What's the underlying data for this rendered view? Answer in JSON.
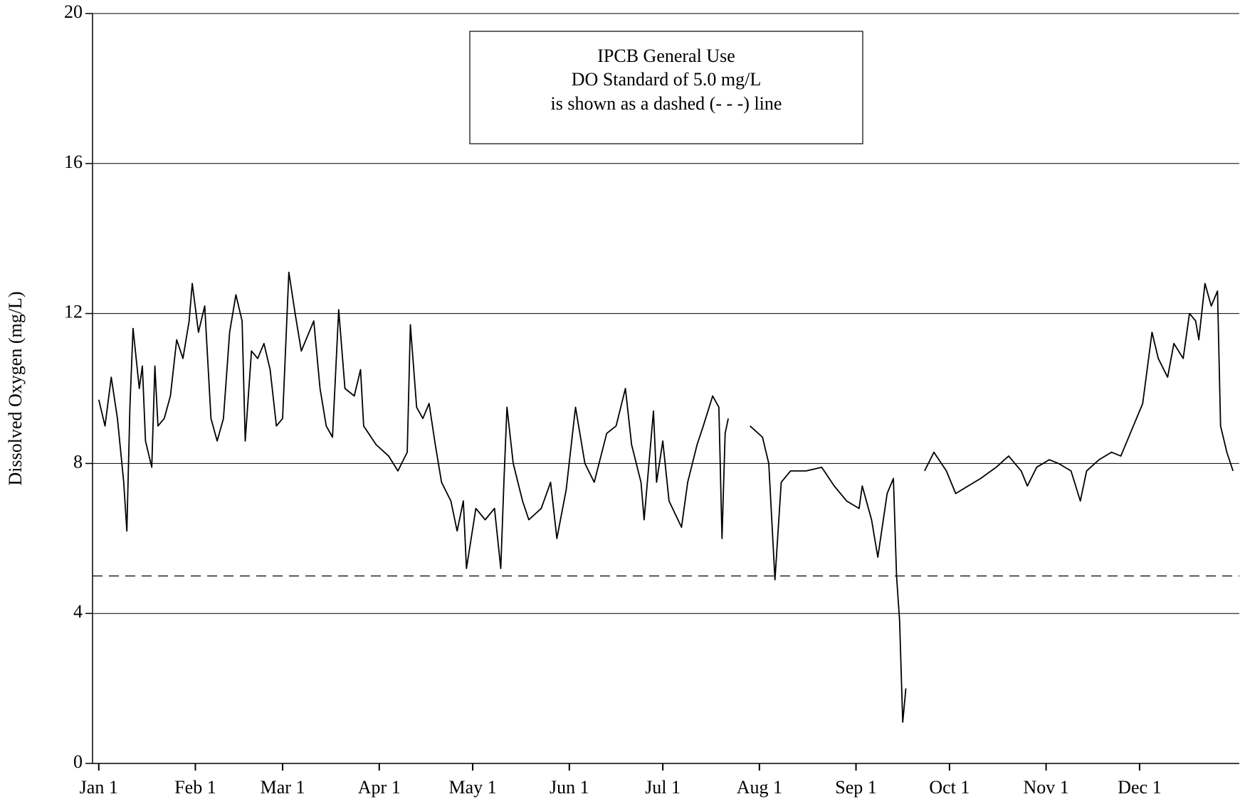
{
  "chart_data": {
    "type": "line",
    "ylabel": "Dissolved Oxygen (mg/L)",
    "annotation": [
      "IPCB General Use",
      "DO Standard of 5.0 mg/L",
      "is shown as a dashed (- - -) line"
    ],
    "reference_line": 5,
    "xlim": [
      -2,
      366
    ],
    "xticks": [
      {
        "value": 0,
        "label": "Jan 1"
      },
      {
        "value": 31,
        "label": "Feb 1"
      },
      {
        "value": 59,
        "label": "Mar 1"
      },
      {
        "value": 90,
        "label": "Apr 1"
      },
      {
        "value": 120,
        "label": "May 1"
      },
      {
        "value": 151,
        "label": "Jun 1"
      },
      {
        "value": 181,
        "label": "Jul 1"
      },
      {
        "value": 212,
        "label": "Aug 1"
      },
      {
        "value": 243,
        "label": "Sep 1"
      },
      {
        "value": 273,
        "label": "Oct 1"
      },
      {
        "value": 304,
        "label": "Nov 1"
      },
      {
        "value": 334,
        "label": "Dec 1"
      }
    ],
    "ylim": [
      0,
      20
    ],
    "yticks": [
      0,
      4,
      8,
      12,
      16,
      20
    ],
    "grid": true,
    "x": [
      0,
      2,
      4,
      6,
      8,
      9,
      10,
      11,
      13,
      14,
      15,
      17,
      18,
      19,
      21,
      23,
      25,
      27,
      29,
      30,
      32,
      34,
      36,
      38,
      40,
      42,
      44,
      46,
      47,
      49,
      51,
      53,
      55,
      57,
      59,
      61,
      63,
      65,
      69,
      71,
      73,
      75,
      77,
      79,
      82,
      84,
      85,
      89,
      93,
      96,
      99,
      100,
      102,
      104,
      106,
      108,
      110,
      113,
      115,
      117,
      118,
      121,
      124,
      127,
      129,
      130,
      131,
      133,
      136,
      138,
      142,
      145,
      147,
      150,
      153,
      156,
      159,
      163,
      166,
      169,
      171,
      174,
      175,
      178,
      179,
      181,
      183,
      187,
      189,
      192,
      194,
      197,
      199,
      200,
      201,
      202,
      205,
      209,
      213,
      215,
      217,
      219,
      222,
      227,
      232,
      236,
      240,
      244,
      245,
      248,
      250,
      253,
      255,
      256,
      257,
      258,
      259,
      262,
      265,
      268,
      272,
      275,
      279,
      283,
      288,
      292,
      296,
      298,
      301,
      305,
      308,
      312,
      315,
      317,
      321,
      325,
      328,
      331,
      335,
      338,
      340,
      343,
      345,
      348,
      350,
      352,
      353,
      355,
      357,
      359,
      360,
      362,
      364
    ],
    "series": [
      {
        "color": "#000000",
        "values": [
          9.7,
          9.0,
          10.3,
          9.2,
          7.5,
          6.2,
          9.5,
          11.6,
          10.0,
          10.6,
          8.6,
          7.9,
          10.6,
          9.0,
          9.2,
          9.8,
          11.3,
          10.8,
          11.8,
          12.8,
          11.5,
          12.2,
          9.2,
          8.6,
          9.2,
          11.5,
          12.5,
          11.8,
          8.6,
          11.0,
          10.8,
          11.2,
          10.5,
          9.0,
          9.2,
          13.1,
          12.0,
          11.0,
          11.8,
          10.0,
          9.0,
          8.7,
          12.1,
          10.0,
          9.8,
          10.5,
          9.0,
          8.5,
          8.2,
          7.8,
          8.3,
          11.7,
          9.5,
          9.2,
          9.6,
          8.5,
          7.5,
          7.0,
          6.2,
          7.0,
          5.2,
          6.8,
          6.5,
          6.8,
          5.2,
          7.5,
          9.5,
          8.0,
          7.0,
          6.5,
          6.8,
          7.5,
          6.0,
          7.3,
          9.5,
          8.0,
          7.5,
          8.8,
          9.0,
          10.0,
          8.5,
          7.5,
          6.5,
          9.4,
          7.5,
          8.6,
          7.0,
          6.3,
          7.5,
          8.5,
          9.0,
          9.8,
          9.5,
          6.0,
          8.8,
          9.2,
          null,
          9.0,
          8.7,
          8.0,
          4.9,
          7.5,
          7.8,
          7.8,
          7.9,
          7.4,
          7.0,
          6.8,
          7.4,
          6.5,
          5.5,
          7.2,
          7.6,
          5.0,
          3.8,
          1.1,
          2.0,
          null,
          7.8,
          8.3,
          7.8,
          7.2,
          7.4,
          7.6,
          7.9,
          8.2,
          7.8,
          7.4,
          7.9,
          8.1,
          8.0,
          7.8,
          7.0,
          7.8,
          8.1,
          8.3,
          8.2,
          8.8,
          9.6,
          11.5,
          10.8,
          10.3,
          11.2,
          10.8,
          12.0,
          11.8,
          11.3,
          12.8,
          12.2,
          12.6,
          9.0,
          8.3,
          7.8
        ]
      }
    ]
  }
}
